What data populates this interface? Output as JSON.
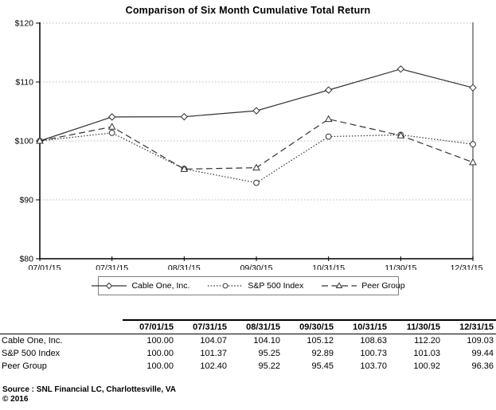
{
  "chart_data": {
    "type": "line",
    "title": "Comparison of Six Month Cumulative Total Return",
    "x_labels": [
      "07/01/15",
      "07/31/15",
      "08/31/15",
      "09/30/15",
      "10/31/15",
      "11/30/15",
      "12/31/15"
    ],
    "y_ticks": [
      80,
      90,
      100,
      110,
      120
    ],
    "y_tick_labels": [
      "$80",
      "$90",
      "$100",
      "$110",
      "$120"
    ],
    "ylim": [
      80,
      120
    ],
    "grid": "horizontal-dotted",
    "legend_position": "bottom",
    "series": [
      {
        "name": "Cable One, Inc.",
        "marker": "diamond",
        "line": "solid",
        "values": [
          100.0,
          104.07,
          104.1,
          105.12,
          108.63,
          112.2,
          109.03
        ]
      },
      {
        "name": "S&P 500 Index",
        "marker": "circle",
        "line": "dotted",
        "values": [
          100.0,
          101.37,
          95.25,
          92.89,
          100.73,
          101.03,
          99.44
        ]
      },
      {
        "name": "Peer Group",
        "marker": "triangle",
        "line": "dashed",
        "values": [
          100.0,
          102.4,
          95.22,
          95.45,
          103.7,
          100.92,
          96.36
        ]
      }
    ]
  },
  "table": {
    "columns": [
      "07/01/15",
      "07/31/15",
      "08/31/15",
      "09/30/15",
      "10/31/15",
      "11/30/15",
      "12/31/15"
    ],
    "rows": [
      {
        "label": "Cable One, Inc.",
        "values": [
          "100.00",
          "104.07",
          "104.10",
          "105.12",
          "108.63",
          "112.20",
          "109.03"
        ]
      },
      {
        "label": "S&P 500 Index",
        "values": [
          "100.00",
          "101.37",
          "95.25",
          "92.89",
          "100.73",
          "101.03",
          "99.44"
        ]
      },
      {
        "label": "Peer Group",
        "values": [
          "100.00",
          "102.40",
          "95.22",
          "95.45",
          "103.70",
          "100.92",
          "96.36"
        ]
      }
    ]
  },
  "footer": {
    "source_label": "Source :",
    "source_text": "SNL Financial LC, Charlottesville, VA",
    "copyright": "© 2016"
  },
  "colors": {
    "line": "#333333",
    "grid": "#b8b8b8",
    "axis": "#000000",
    "plot_right_border": "#666666",
    "background": "#ffffff",
    "text": "#000000"
  }
}
